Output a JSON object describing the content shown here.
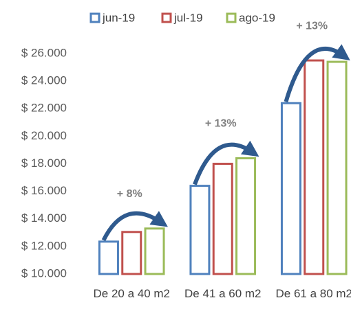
{
  "chart_data": {
    "type": "bar",
    "categories": [
      "De 20 a 40 m2",
      "De 41 a 60 m2",
      "De 61 a 80 m2"
    ],
    "series": [
      {
        "name": "jun-19",
        "color": "#4f81bd",
        "values": [
          12350,
          16400,
          22400
        ]
      },
      {
        "name": "jul-19",
        "color": "#c0504d",
        "values": [
          13050,
          18000,
          25500
        ]
      },
      {
        "name": "ago-19",
        "color": "#9bbb59",
        "values": [
          13300,
          18400,
          25400
        ]
      }
    ],
    "ylim": [
      10000,
      26000
    ],
    "yticks": [
      {
        "value": 10000,
        "label": "$ 10.000"
      },
      {
        "value": 12000,
        "label": "$ 12.000"
      },
      {
        "value": 14000,
        "label": "$ 14.000"
      },
      {
        "value": 16000,
        "label": "$ 16.000"
      },
      {
        "value": 18000,
        "label": "$ 18.000"
      },
      {
        "value": 20000,
        "label": "$ 20.000"
      },
      {
        "value": 22000,
        "label": "$ 22.000"
      },
      {
        "value": 24000,
        "label": "$ 24.000"
      },
      {
        "value": 26000,
        "label": "$ 26.000"
      }
    ],
    "annotations": [
      "+ 8%",
      "+ 13%",
      "+ 13%"
    ],
    "legend": "top",
    "grid": false
  }
}
